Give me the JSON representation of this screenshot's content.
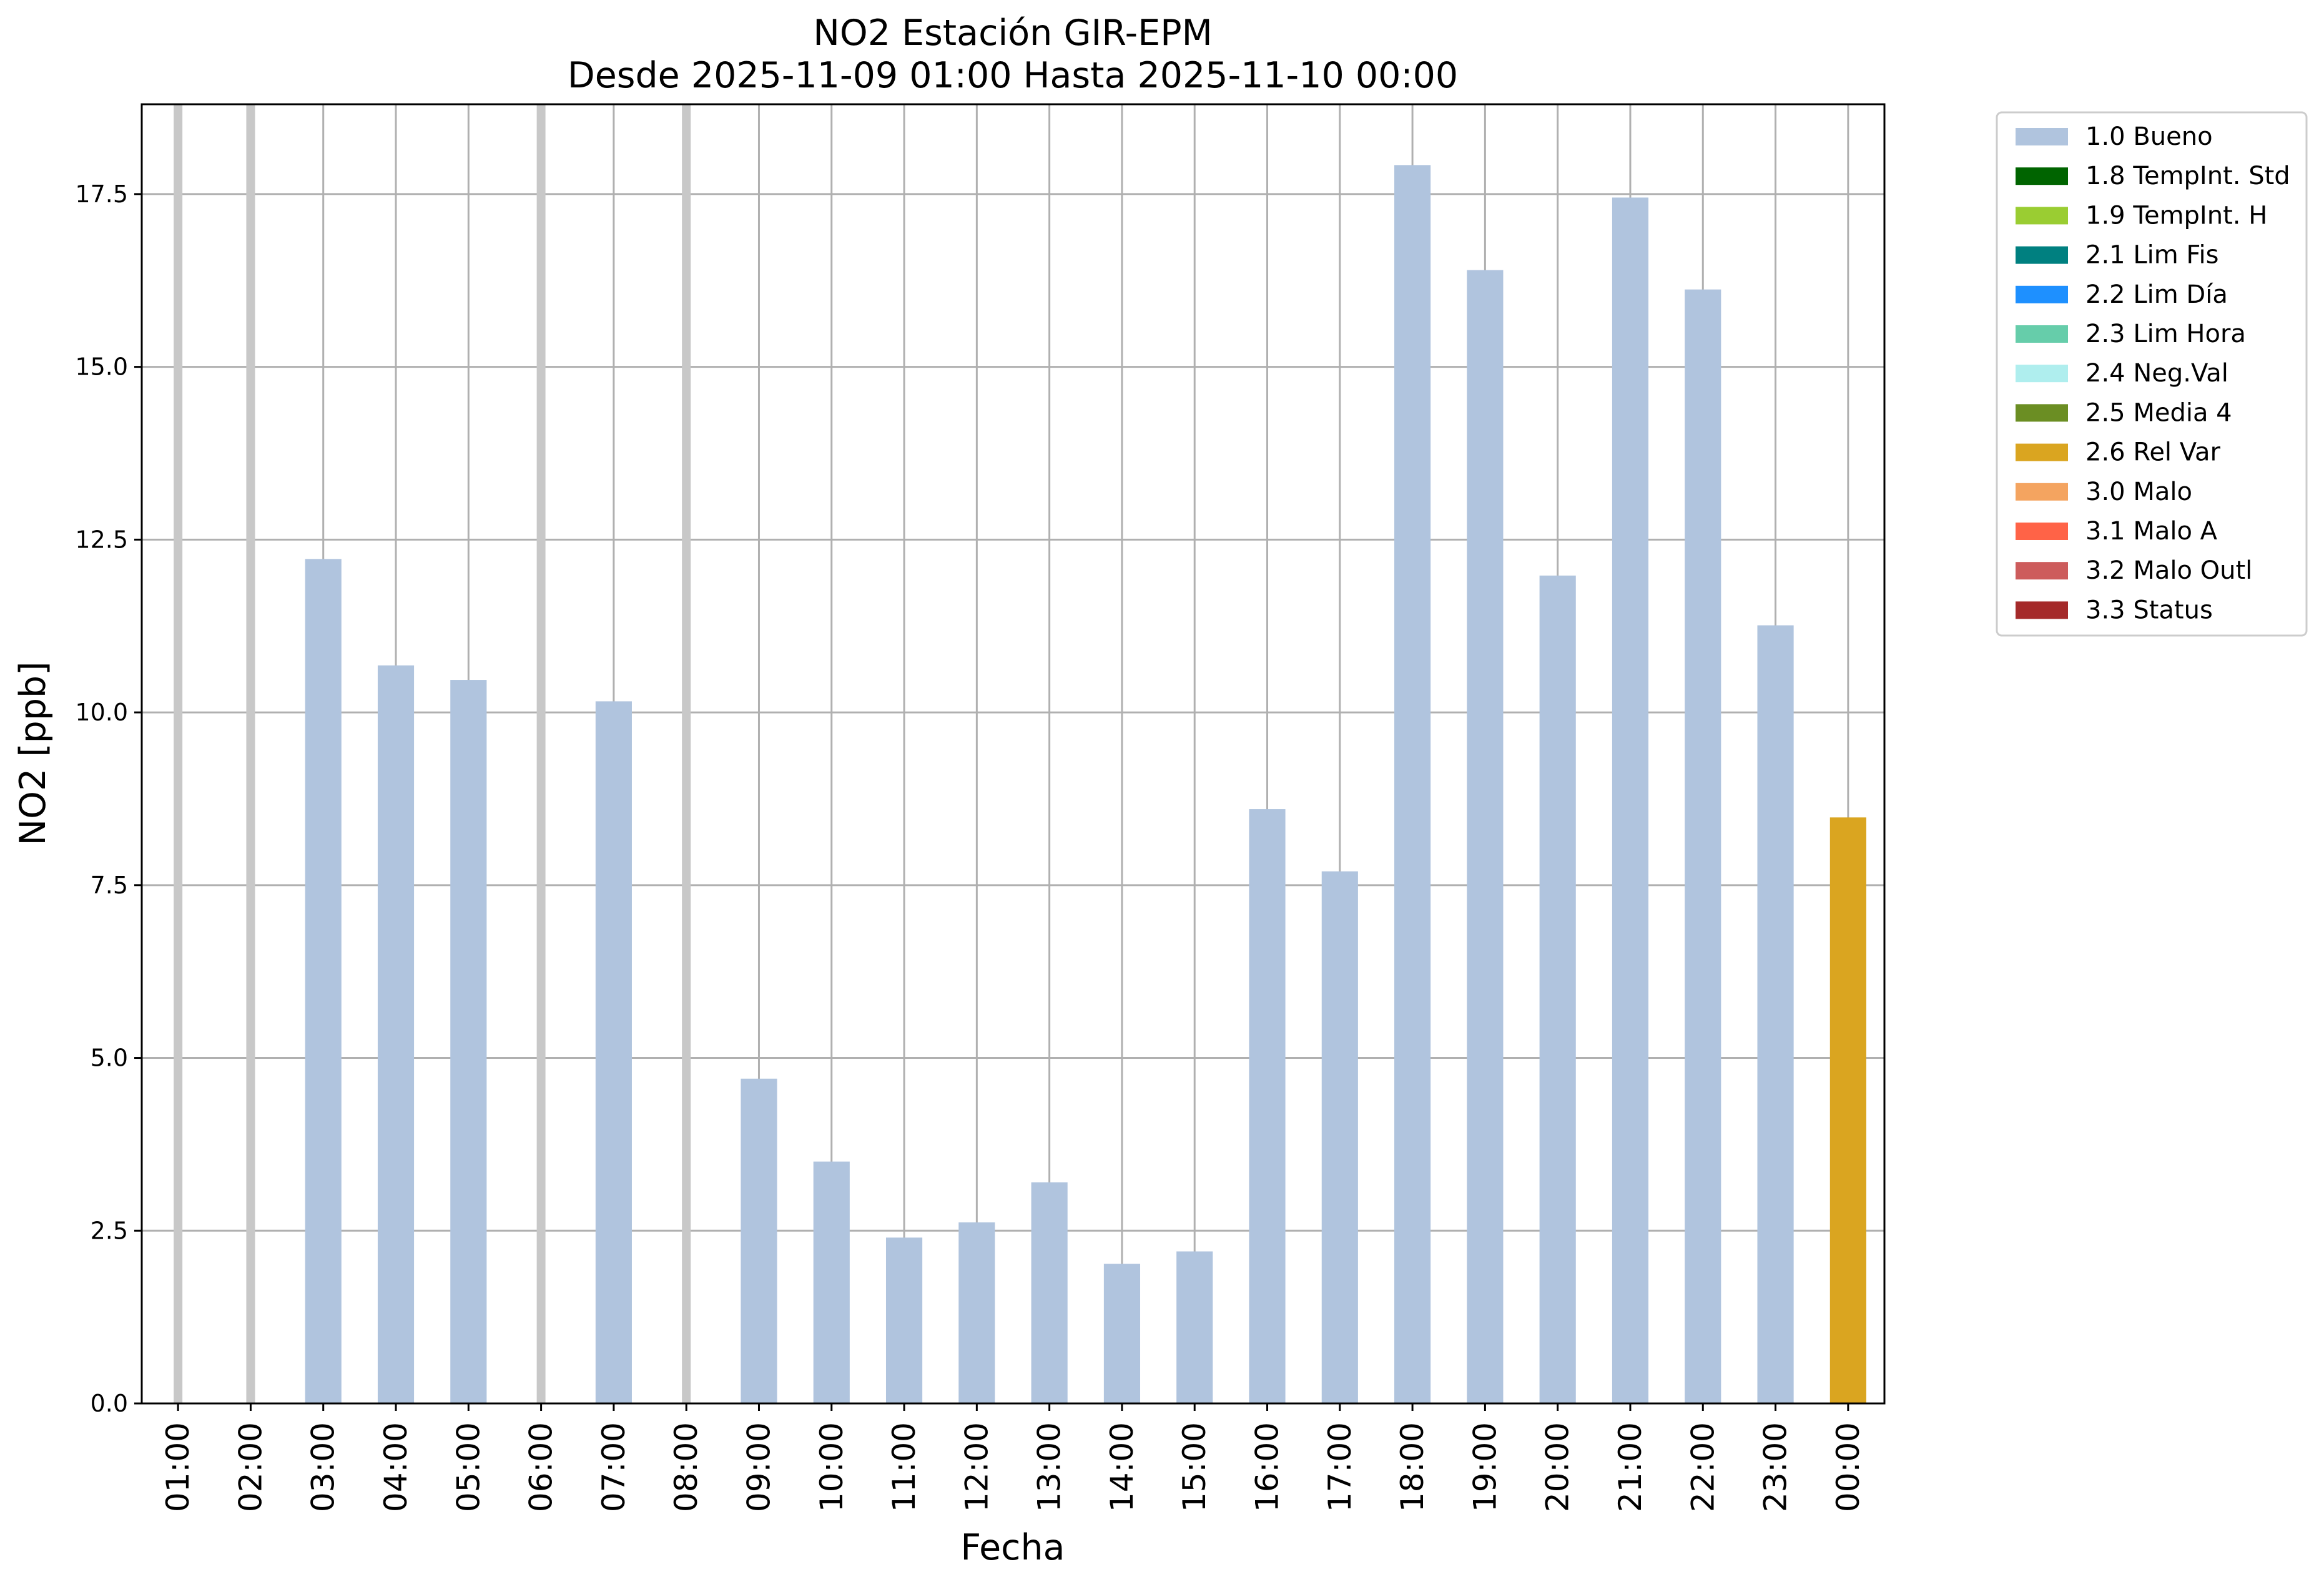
{
  "chart_data": {
    "type": "bar",
    "title": "NO2 Estación GIR-EPM",
    "subtitle": "Desde 2025-11-09 01:00 Hasta 2025-11-10 00:00",
    "xlabel": "Fecha",
    "ylabel": "NO2 [ppb]",
    "ylim": [
      0,
      18.8
    ],
    "yticks": [
      "0.0",
      "2.5",
      "5.0",
      "7.5",
      "10.0",
      "12.5",
      "15.0",
      "17.5"
    ],
    "grid": true,
    "legend_position": "outside-right-top",
    "categories": [
      "01:00",
      "02:00",
      "03:00",
      "04:00",
      "05:00",
      "06:00",
      "07:00",
      "08:00",
      "09:00",
      "10:00",
      "11:00",
      "12:00",
      "13:00",
      "14:00",
      "15:00",
      "16:00",
      "17:00",
      "18:00",
      "19:00",
      "20:00",
      "21:00",
      "22:00",
      "23:00",
      "00:00"
    ],
    "values": [
      null,
      null,
      12.22,
      10.68,
      10.47,
      null,
      10.16,
      null,
      4.7,
      3.5,
      2.4,
      2.62,
      3.2,
      2.02,
      2.2,
      8.6,
      7.7,
      17.92,
      16.4,
      11.98,
      17.45,
      16.12,
      11.26,
      8.48
    ],
    "flags": [
      "missing",
      "missing",
      "1.0 Bueno",
      "1.0 Bueno",
      "1.0 Bueno",
      "missing",
      "1.0 Bueno",
      "missing",
      "1.0 Bueno",
      "1.0 Bueno",
      "1.0 Bueno",
      "1.0 Bueno",
      "1.0 Bueno",
      "1.0 Bueno",
      "1.0 Bueno",
      "1.0 Bueno",
      "1.0 Bueno",
      "1.0 Bueno",
      "1.0 Bueno",
      "1.0 Bueno",
      "1.0 Bueno",
      "1.0 Bueno",
      "1.0 Bueno",
      "2.6 Rel Var"
    ],
    "missing_color": "#c8c8c8",
    "legend": [
      {
        "label": "1.0 Bueno",
        "color": "#b0c4de"
      },
      {
        "label": "1.8 TempInt. Std",
        "color": "#006400"
      },
      {
        "label": "1.9 TempInt. H",
        "color": "#9acd32"
      },
      {
        "label": "2.1 Lim Fis",
        "color": "#008080"
      },
      {
        "label": "2.2 Lim Día",
        "color": "#1e90ff"
      },
      {
        "label": "2.3 Lim Hora",
        "color": "#66cdaa"
      },
      {
        "label": "2.4 Neg.Val",
        "color": "#afeeee"
      },
      {
        "label": "2.5 Media 4",
        "color": "#6b8e23"
      },
      {
        "label": "2.6 Rel Var",
        "color": "#daa520"
      },
      {
        "label": "3.0 Malo",
        "color": "#f4a460"
      },
      {
        "label": "3.1 Malo A",
        "color": "#ff6347"
      },
      {
        "label": "3.2 Malo Outl",
        "color": "#cd5c5c"
      },
      {
        "label": "3.3 Status",
        "color": "#a52a2a"
      }
    ]
  }
}
